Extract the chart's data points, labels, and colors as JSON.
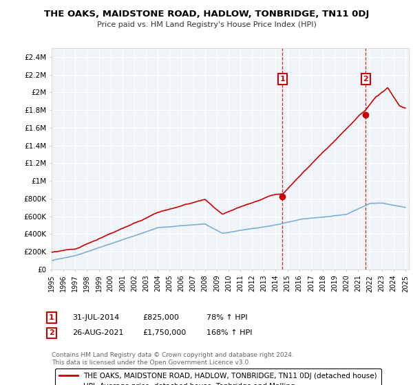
{
  "title": "THE OAKS, MAIDSTONE ROAD, HADLOW, TONBRIDGE, TN11 0DJ",
  "subtitle": "Price paid vs. HM Land Registry's House Price Index (HPI)",
  "hpi_label": "HPI: Average price, detached house, Tonbridge and Malling",
  "property_label": "THE OAKS, MAIDSTONE ROAD, HADLOW, TONBRIDGE, TN11 0DJ (detached house)",
  "red_color": "#cc0000",
  "blue_color": "#7bafd4",
  "transaction1": {
    "date_label": "31-JUL-2014",
    "price": 825000,
    "hpi_pct": "78%",
    "marker_year": 2014.58
  },
  "transaction2": {
    "date_label": "26-AUG-2021",
    "price": 1750000,
    "hpi_pct": "168%",
    "marker_year": 2021.65
  },
  "footer": "Contains HM Land Registry data © Crown copyright and database right 2024.\nThis data is licensed under the Open Government Licence v3.0.",
  "ylim": [
    0,
    2500000
  ],
  "yticks": [
    0,
    200000,
    400000,
    600000,
    800000,
    1000000,
    1200000,
    1400000,
    1600000,
    1800000,
    2000000,
    2200000,
    2400000
  ],
  "ytick_labels": [
    "£0",
    "£200K",
    "£400K",
    "£600K",
    "£800K",
    "£1M",
    "£1.2M",
    "£1.4M",
    "£1.6M",
    "£1.8M",
    "£2M",
    "£2.2M",
    "£2.4M"
  ]
}
